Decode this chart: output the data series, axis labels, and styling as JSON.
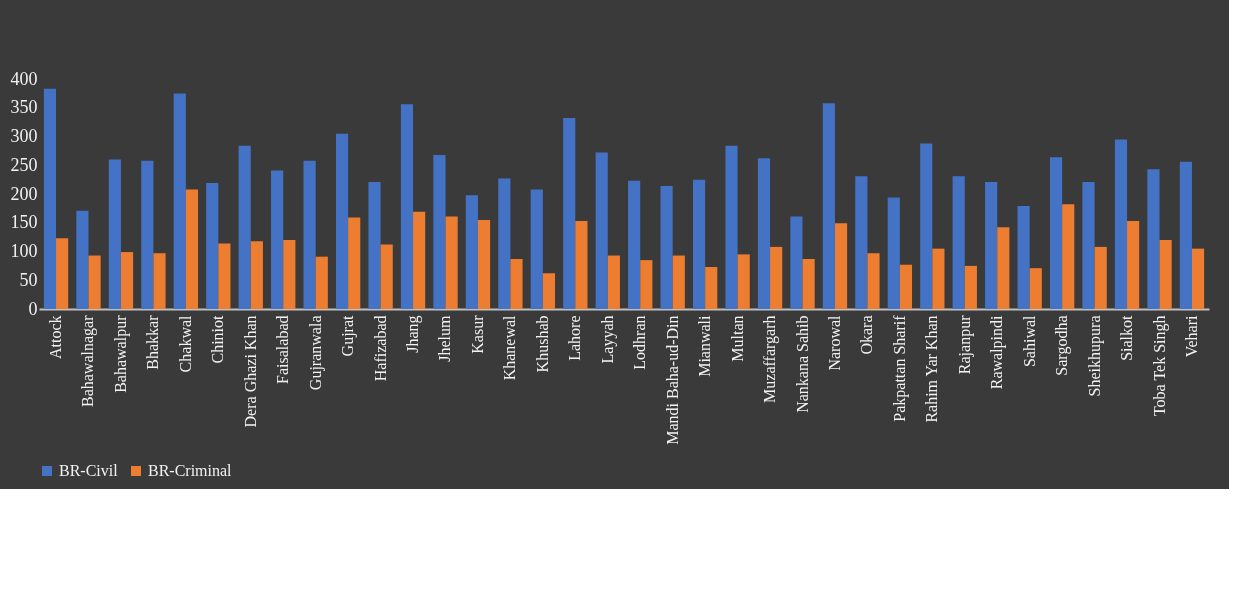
{
  "chart_data": {
    "type": "bar",
    "categories": [
      "Attock",
      "Bahawalnagar",
      "Bahawalpur",
      "Bhakkar",
      "Chakwal",
      "Chiniot",
      "Dera Ghazi Khan",
      "Faisalabad",
      "Gujranwala",
      "Gujrat",
      "Hafizabad",
      "Jhang",
      "Jhelum",
      "Kasur",
      "Khanewal",
      "Khushab",
      "Lahore",
      "Layyah",
      "Lodhran",
      "Mandi Baha-ud-Din",
      "Mianwali",
      "Multan",
      "Muzaffargarh",
      "Nankana Sahib",
      "Narowal",
      "Okara",
      "Pakpattan Sharif",
      "Rahim Yar Khan",
      "Rajanpur",
      "Rawalpindi",
      "Sahiwal",
      "Sargodha",
      "Sheikhupura",
      "Sialkot",
      "Toba Tek Singh",
      "Vehari"
    ],
    "series": [
      {
        "name": "BR-Civil",
        "color": "#4472c4",
        "values": [
          383,
          171,
          260,
          258,
          375,
          219,
          284,
          241,
          258,
          305,
          221,
          356,
          268,
          198,
          227,
          208,
          332,
          272,
          223,
          214,
          225,
          284,
          262,
          161,
          358,
          231,
          194,
          288,
          231,
          221,
          179,
          264,
          221,
          295,
          243,
          256
        ]
      },
      {
        "name": "BR-Criminal",
        "color": "#ed7d31",
        "values": [
          123,
          93,
          99,
          97,
          208,
          114,
          118,
          120,
          91,
          159,
          112,
          169,
          161,
          155,
          87,
          62,
          153,
          93,
          85,
          93,
          73,
          95,
          108,
          87,
          149,
          97,
          77,
          105,
          75,
          142,
          71,
          182,
          108,
          153,
          120,
          105
        ]
      }
    ],
    "ylim": [
      0,
      400
    ],
    "yticks": [
      0,
      50,
      100,
      150,
      200,
      250,
      300,
      350,
      400
    ],
    "grid": false,
    "legend": "bottom"
  }
}
